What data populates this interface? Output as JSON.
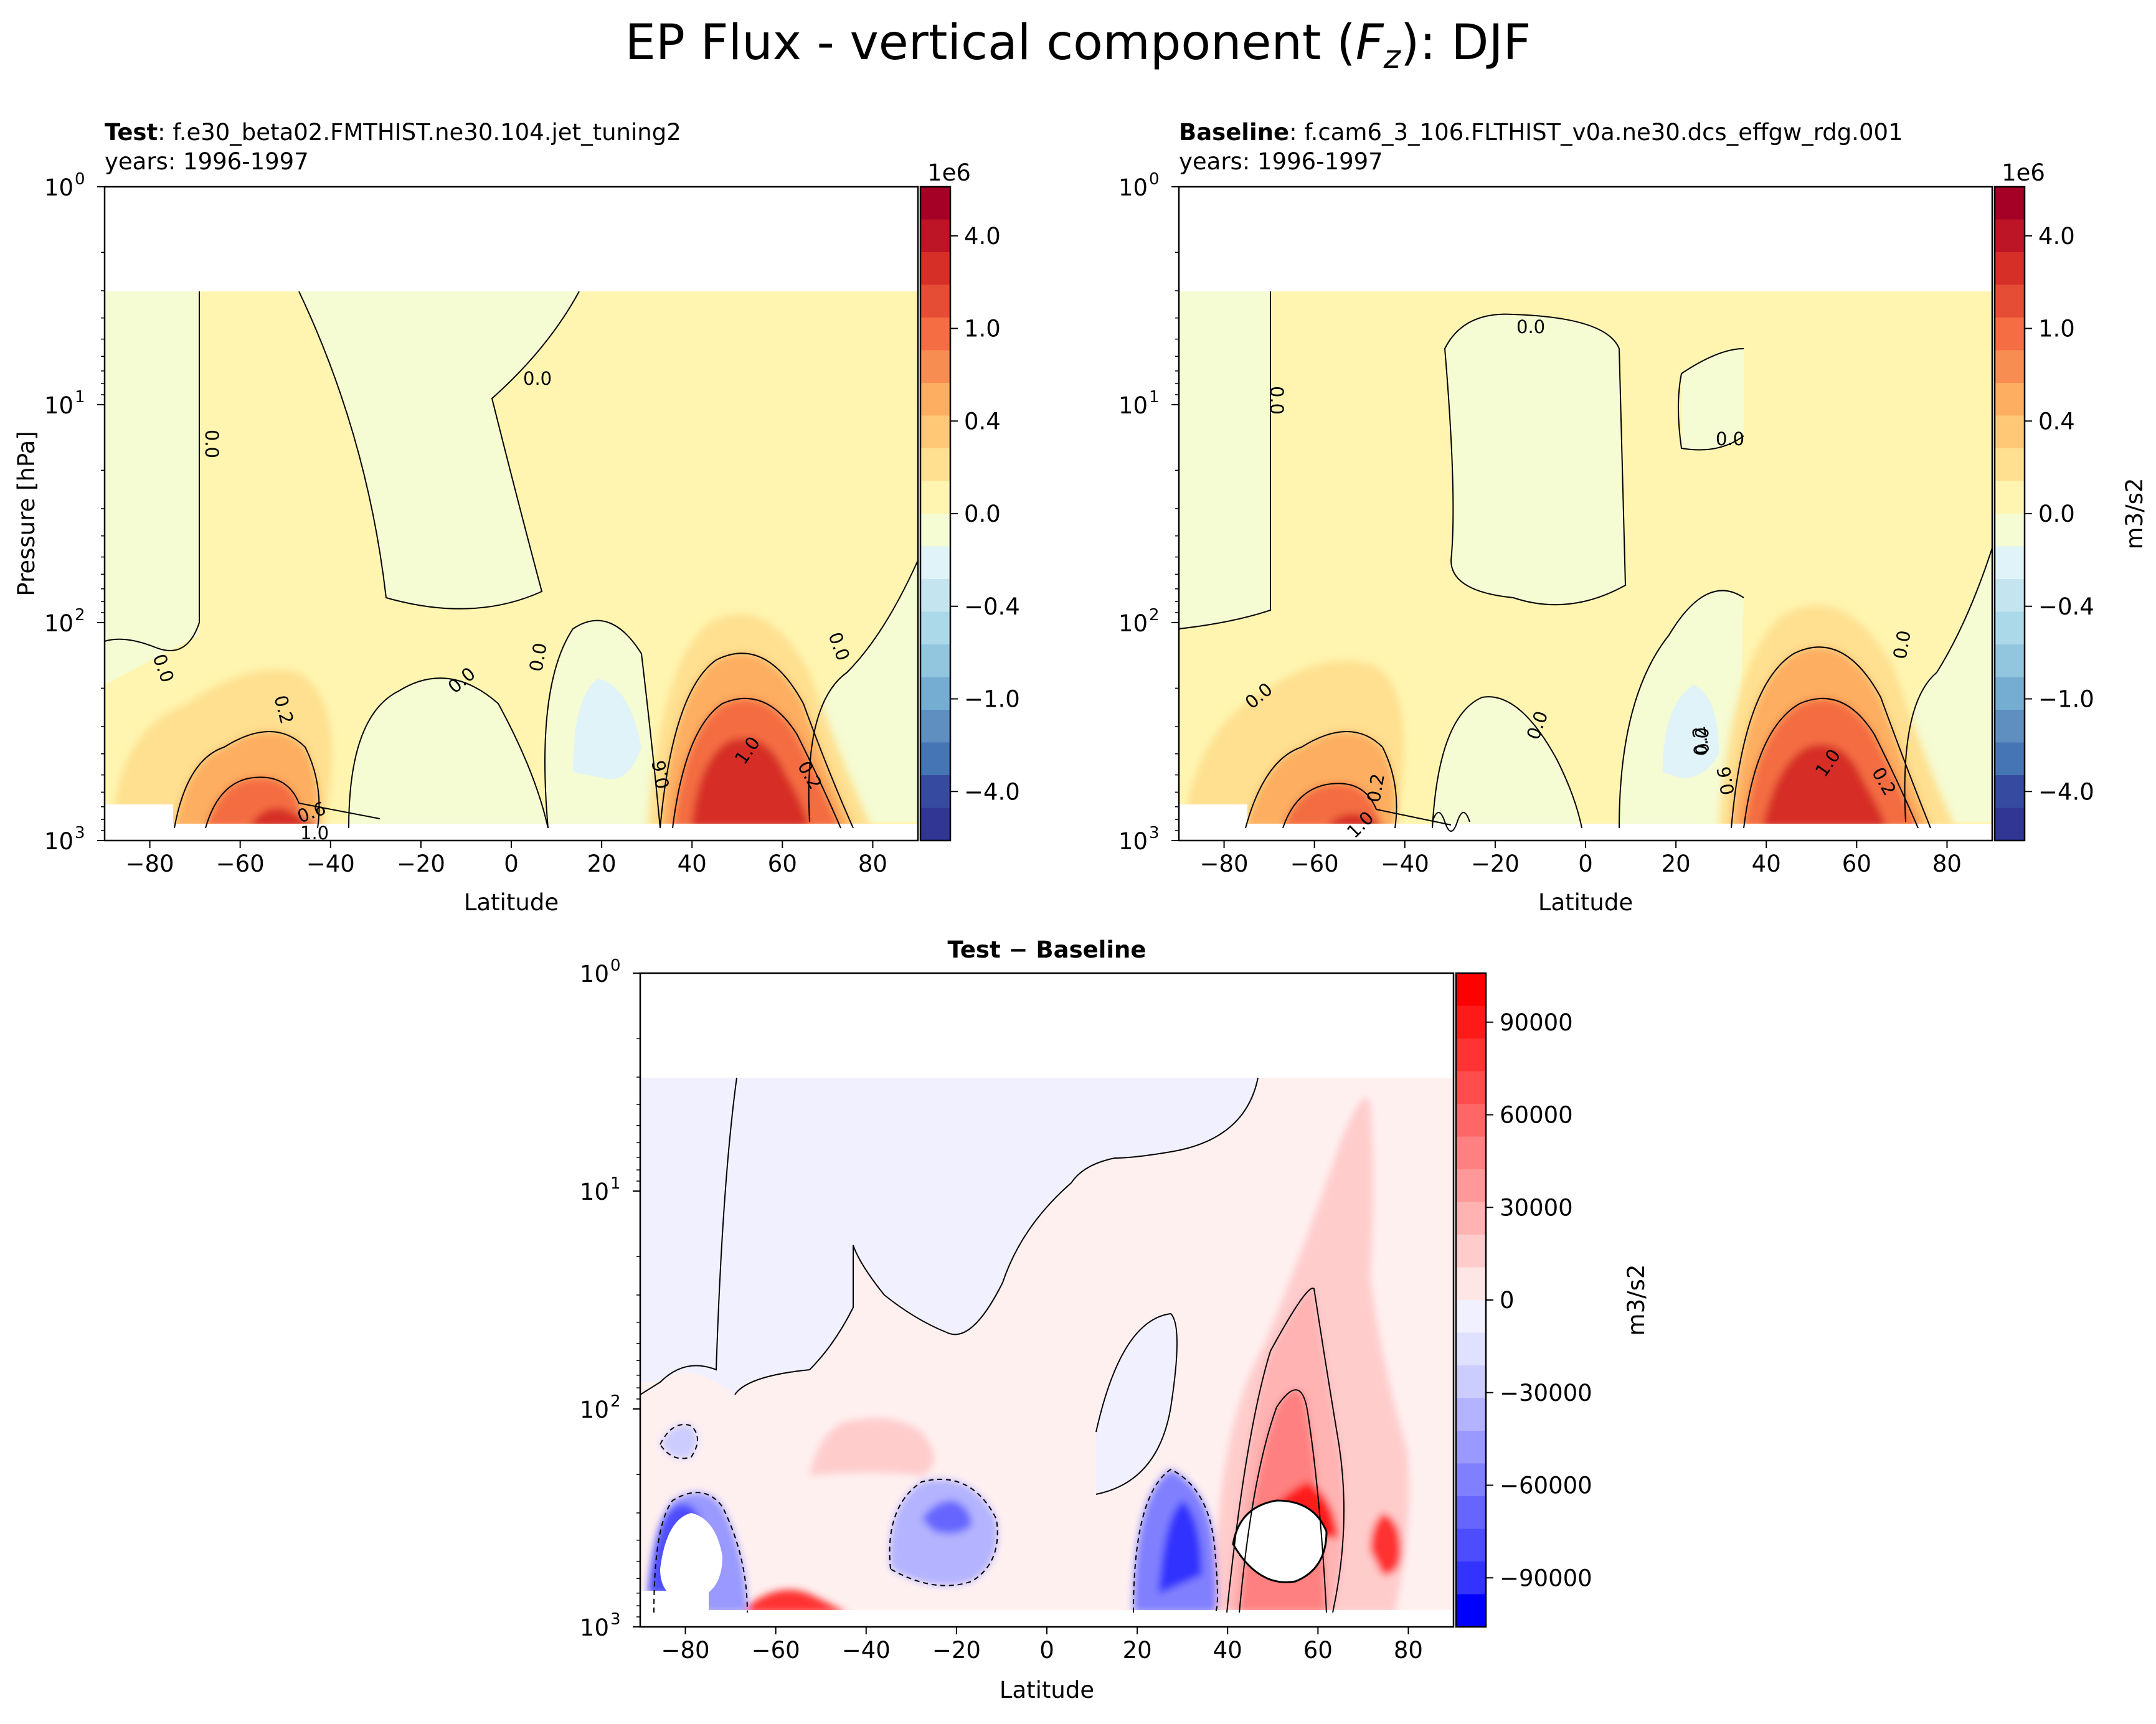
{
  "figure_title_main": "EP Flux - vertical component (",
  "figure_title_var": "F",
  "figure_title_sub": "z",
  "figure_title_end": "): DJF",
  "chart_data": [
    {
      "type": "heatmap",
      "panel": "test",
      "title_bold": "Test",
      "title_rest": ": f.e30_beta02.FMTHIST.ne30.104.jet_tuning2",
      "subtitle": "years: 1996-1997",
      "xlabel": "Latitude",
      "ylabel": "Pressure [hPa]",
      "xlim": [
        -90,
        90
      ],
      "xticks": [
        "−80",
        "−60",
        "−40",
        "−20",
        "0",
        "20",
        "40",
        "60",
        "80"
      ],
      "ylim_hpa": [
        1000,
        1
      ],
      "yscale": "log",
      "yticks": [
        "10",
        "10",
        "10",
        "10"
      ],
      "ytick_exponents": [
        "0",
        "1",
        "2",
        "3"
      ],
      "colorbar": {
        "offset": "1e6",
        "ticks": [
          "4.0",
          "1.0",
          "0.4",
          "0.0",
          "−0.4",
          "−1.0",
          "−4.0"
        ],
        "colors": [
          "#a50026",
          "#bd1526",
          "#d62f27",
          "#e54e35",
          "#f46d43",
          "#f88d52",
          "#fdae61",
          "#fec877",
          "#fee090",
          "#fff5b0",
          "#f5fbd2",
          "#e0f3f8",
          "#c4e5f0",
          "#abd9e9",
          "#92c5de",
          "#74add1",
          "#5f8ec1",
          "#4575b4",
          "#364ba0",
          "#313695"
        ]
      },
      "contour_labels": [
        "0.0",
        "0.0",
        "0.0",
        "0.0",
        "0.0",
        "0.0",
        "0.2",
        "0.2",
        "1.0",
        "0.6",
        "0.6",
        "1.0"
      ],
      "units": "m3/s2"
    },
    {
      "type": "heatmap",
      "panel": "baseline",
      "title_bold": "Baseline",
      "title_rest": ": f.cam6_3_106.FLTHIST_v0a.ne30.dcs_effgw_rdg.001",
      "subtitle": "years: 1996-1997",
      "xlabel": "Latitude",
      "xlim": [
        -90,
        90
      ],
      "xticks": [
        "−80",
        "−60",
        "−40",
        "−20",
        "0",
        "20",
        "40",
        "60",
        "80"
      ],
      "yscale": "log",
      "yticks": [
        "10",
        "10",
        "10",
        "10"
      ],
      "ytick_exponents": [
        "0",
        "1",
        "2",
        "3"
      ],
      "colorbar": {
        "offset": "1e6",
        "label": "m3/s2",
        "ticks": [
          "4.0",
          "1.0",
          "0.4",
          "0.0",
          "−0.4",
          "−1.0",
          "−4.0"
        ]
      },
      "contour_labels": [
        "0.0",
        "0.0",
        "0.0",
        "0.0",
        "0.0",
        "0.0",
        "0.0",
        "0.2",
        "1.0",
        "0.6",
        "1.0",
        "0.2",
        "0.2"
      ]
    },
    {
      "type": "heatmap",
      "panel": "difference",
      "title_bold": "Test − Baseline",
      "xlabel": "Latitude",
      "xlim": [
        -90,
        90
      ],
      "xticks": [
        "−80",
        "−60",
        "−40",
        "−20",
        "0",
        "20",
        "40",
        "60",
        "80"
      ],
      "yscale": "log",
      "yticks": [
        "10",
        "10",
        "10",
        "10"
      ],
      "ytick_exponents": [
        "0",
        "1",
        "2",
        "3"
      ],
      "colorbar": {
        "label": "m3/s2",
        "ticks": [
          "90000",
          "60000",
          "30000",
          "0",
          "−30000",
          "−60000",
          "−90000"
        ],
        "colors": [
          "#ff0000",
          "#ff1a1a",
          "#ff3333",
          "#ff4d4d",
          "#ff6666",
          "#ff8080",
          "#ff9999",
          "#ffb3b3",
          "#ffcccc",
          "#ffe6e6",
          "#f0f0ff",
          "#e0e0ff",
          "#ccccff",
          "#b3b3ff",
          "#9999ff",
          "#8080ff",
          "#6666ff",
          "#4d4dff",
          "#3333ff",
          "#0000ff"
        ]
      }
    }
  ]
}
